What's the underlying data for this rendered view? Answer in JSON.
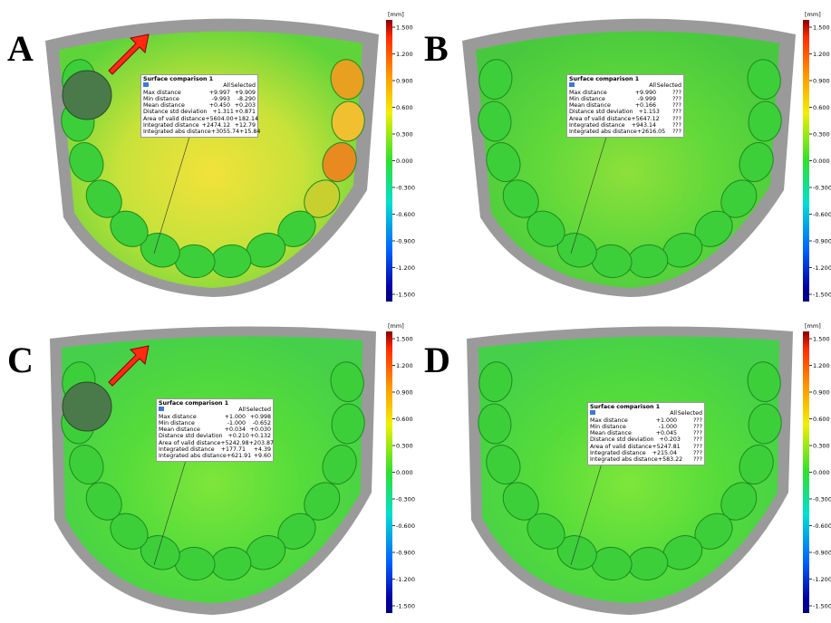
{
  "panels": [
    {
      "label": "A",
      "scale_unit": "[mm]",
      "scale_ticks": [
        "1.500",
        "1.200",
        "0.900",
        "0.600",
        "0.300",
        "0.000",
        "-0.300",
        "-0.600",
        "-0.900",
        "-1.200",
        "-1.500"
      ],
      "table": {
        "title": "Surface comparison 1",
        "columns": [
          "All",
          "Selected"
        ],
        "rows": [
          [
            "Max distance",
            "+9.997",
            "+9.909"
          ],
          [
            "Min distance",
            "-9.993",
            "-8.290"
          ],
          [
            "Mean distance",
            "+0.450",
            "+0.203"
          ],
          [
            "Distance std deviation",
            "+1.311",
            "+0.871"
          ],
          [
            "Area of valid distance",
            "+5604.00",
            "+182.14"
          ],
          [
            "Integrated distance",
            "+2474.12",
            "+12.79"
          ],
          [
            "Integrated abs distance",
            "+3055.74",
            "+15.84"
          ]
        ]
      }
    },
    {
      "label": "B",
      "scale_unit": "[mm]",
      "scale_ticks": [
        "1.500",
        "1.200",
        "0.900",
        "0.600",
        "0.300",
        "0.000",
        "-0.300",
        "-0.600",
        "-0.900",
        "-1.200",
        "-1.500"
      ],
      "table": {
        "title": "Surface comparison 1",
        "columns": [
          "All",
          "Selected"
        ],
        "rows": [
          [
            "Max distance",
            "+9.990",
            "???"
          ],
          [
            "Min distance",
            "-9.999",
            "???"
          ],
          [
            "Mean distance",
            "+0.166",
            "???"
          ],
          [
            "Distance std deviation",
            "+1.153",
            "???"
          ],
          [
            "Area of valid distance",
            "+5647.12",
            "???"
          ],
          [
            "Integrated distance",
            "+943.14",
            "???"
          ],
          [
            "Integrated abs distance",
            "+2616.05",
            "???"
          ]
        ]
      }
    },
    {
      "label": "C",
      "scale_unit": "[mm]",
      "scale_ticks": [
        "1.500",
        "1.200",
        "0.900",
        "0.600",
        "0.300",
        "0.000",
        "-0.300",
        "-0.600",
        "-0.900",
        "-1.200",
        "-1.500"
      ],
      "table": {
        "title": "Surface comparison 1",
        "columns": [
          "All",
          "Selected"
        ],
        "rows": [
          [
            "Max distance",
            "+1.000",
            "+0.998"
          ],
          [
            "Min distance",
            "-1.000",
            "-0.652"
          ],
          [
            "Mean distance",
            "+0.034",
            "+0.030"
          ],
          [
            "Distance std deviation",
            "+0.210",
            "+0.132"
          ],
          [
            "Area of valid distance",
            "+5242.98",
            "+203.87"
          ],
          [
            "Integrated distance",
            "+177.71",
            "+4.39"
          ],
          [
            "Integrated abs distance",
            "+621.91",
            "+9.60"
          ]
        ]
      }
    },
    {
      "label": "D",
      "scale_unit": "[mm]",
      "scale_ticks": [
        "1.500",
        "1.200",
        "0.900",
        "0.600",
        "0.300",
        "0.000",
        "-0.300",
        "-0.600",
        "-0.900",
        "-1.200",
        "-1.500"
      ],
      "table": {
        "title": "Surface comparison 1",
        "columns": [
          "All",
          "Selected"
        ],
        "rows": [
          [
            "Max distance",
            "+1.000",
            "???"
          ],
          [
            "Min distance",
            "-1.000",
            "???"
          ],
          [
            "Mean distance",
            "+0.045",
            "???"
          ],
          [
            "Distance std deviation",
            "+0.203",
            "???"
          ],
          [
            "Area of valid distance",
            "+5247.81",
            "???"
          ],
          [
            "Integrated distance",
            "+215.04",
            "???"
          ],
          [
            "Integrated abs distance",
            "+583.22",
            "???"
          ]
        ]
      }
    }
  ]
}
